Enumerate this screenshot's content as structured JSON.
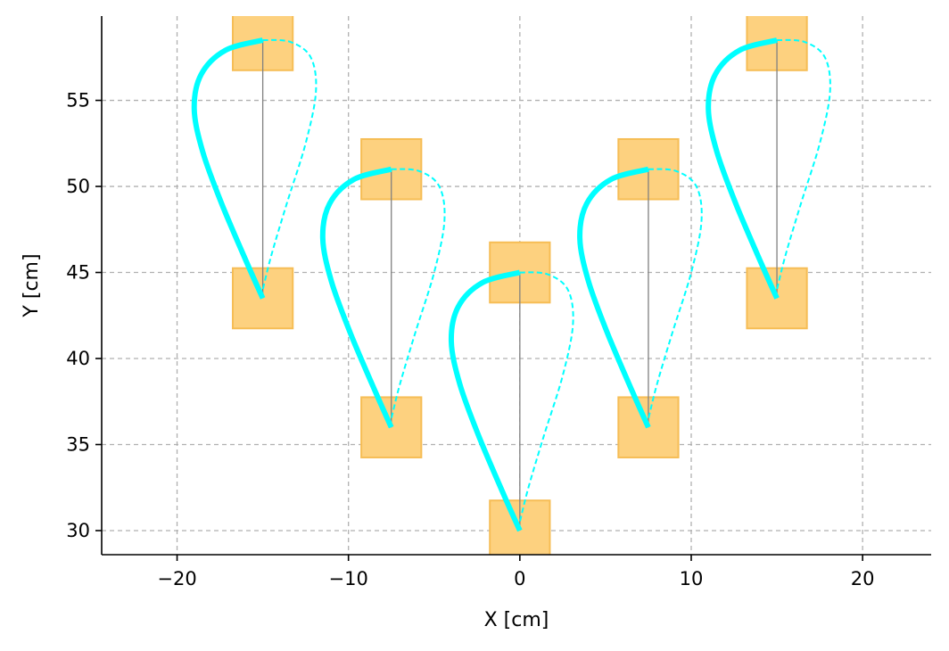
{
  "chart_data": {
    "type": "line",
    "title": "",
    "xlabel": "X [cm]",
    "ylabel": "Y [cm]",
    "xlim": [
      -24.4,
      24
    ],
    "ylim": [
      28.6,
      59.9
    ],
    "xticks": [
      -20,
      -10,
      0,
      10,
      20
    ],
    "yticks": [
      30,
      35,
      40,
      45,
      50,
      55
    ],
    "xtick_labels": [
      "−20",
      "−10",
      "0",
      "10",
      "20"
    ],
    "ytick_labels": [
      "30",
      "35",
      "40",
      "45",
      "50",
      "55"
    ],
    "grid": true,
    "legend": "none",
    "square_size_cm": 3.5,
    "pads": [
      {
        "x": -15,
        "y": 58.5
      },
      {
        "x": -15,
        "y": 43.5
      },
      {
        "x": -7.5,
        "y": 51
      },
      {
        "x": -7.5,
        "y": 36
      },
      {
        "x": 0,
        "y": 45
      },
      {
        "x": 0,
        "y": 30
      },
      {
        "x": 7.5,
        "y": 51
      },
      {
        "x": 7.5,
        "y": 36
      },
      {
        "x": 15,
        "y": 58.5
      },
      {
        "x": 15,
        "y": 43.5
      }
    ],
    "loops": [
      {
        "solid": [
          [
            -15,
            43.5
          ],
          [
            -15.9,
            45.5
          ],
          [
            -17.4,
            49
          ],
          [
            -18.5,
            52
          ],
          [
            -19,
            54.5
          ],
          [
            -18.6,
            56.5
          ],
          [
            -17.2,
            57.9
          ],
          [
            -15,
            58.5
          ]
        ],
        "dashed": [
          [
            -15,
            58.5
          ],
          [
            -13.4,
            58.4
          ],
          [
            -12.2,
            57.5
          ],
          [
            -11.9,
            55.5
          ],
          [
            -12.5,
            52.5
          ],
          [
            -13.6,
            49
          ],
          [
            -14.5,
            46
          ],
          [
            -15,
            44
          ]
        ]
      },
      {
        "solid": [
          [
            -7.5,
            36
          ],
          [
            -8.4,
            38
          ],
          [
            -9.9,
            41.5
          ],
          [
            -11,
            44.5
          ],
          [
            -11.5,
            47
          ],
          [
            -11.1,
            49
          ],
          [
            -9.7,
            50.4
          ],
          [
            -7.5,
            51
          ]
        ],
        "dashed": [
          [
            -7.5,
            51
          ],
          [
            -5.9,
            50.9
          ],
          [
            -4.7,
            50
          ],
          [
            -4.4,
            48
          ],
          [
            -5,
            45
          ],
          [
            -6.1,
            41.5
          ],
          [
            -7,
            38.5
          ],
          [
            -7.5,
            36.5
          ]
        ]
      },
      {
        "solid": [
          [
            0,
            30
          ],
          [
            -0.9,
            32
          ],
          [
            -2.4,
            35.5
          ],
          [
            -3.5,
            38.5
          ],
          [
            -4,
            41
          ],
          [
            -3.6,
            43
          ],
          [
            -2.2,
            44.4
          ],
          [
            0,
            45
          ]
        ],
        "dashed": [
          [
            0,
            45
          ],
          [
            1.6,
            44.9
          ],
          [
            2.8,
            44
          ],
          [
            3.1,
            42
          ],
          [
            2.5,
            39
          ],
          [
            1.4,
            35.5
          ],
          [
            0.5,
            32.5
          ],
          [
            0,
            30.5
          ]
        ]
      },
      {
        "solid": [
          [
            7.5,
            36
          ],
          [
            6.6,
            38
          ],
          [
            5.1,
            41.5
          ],
          [
            4,
            44.5
          ],
          [
            3.5,
            47
          ],
          [
            3.9,
            49
          ],
          [
            5.3,
            50.4
          ],
          [
            7.5,
            51
          ]
        ],
        "dashed": [
          [
            7.5,
            51
          ],
          [
            9.1,
            50.9
          ],
          [
            10.3,
            50
          ],
          [
            10.6,
            48
          ],
          [
            10,
            45
          ],
          [
            8.9,
            41.5
          ],
          [
            8,
            38.5
          ],
          [
            7.5,
            36.5
          ]
        ]
      },
      {
        "solid": [
          [
            15,
            43.5
          ],
          [
            14.1,
            45.5
          ],
          [
            12.6,
            49
          ],
          [
            11.5,
            52
          ],
          [
            11,
            54.5
          ],
          [
            11.4,
            56.5
          ],
          [
            12.8,
            57.9
          ],
          [
            15,
            58.5
          ]
        ],
        "dashed": [
          [
            15,
            58.5
          ],
          [
            16.6,
            58.4
          ],
          [
            17.8,
            57.5
          ],
          [
            18.1,
            55.5
          ],
          [
            17.5,
            52.5
          ],
          [
            16.4,
            49
          ],
          [
            15.5,
            46
          ],
          [
            15,
            44
          ]
        ]
      }
    ],
    "colors": {
      "loop": "#00ffff",
      "pad_fill": "#fdd17f",
      "pad_edge": "#f6bd55",
      "connector": "#808080",
      "grid": "#b0b0b0",
      "axis": "#000000"
    }
  }
}
